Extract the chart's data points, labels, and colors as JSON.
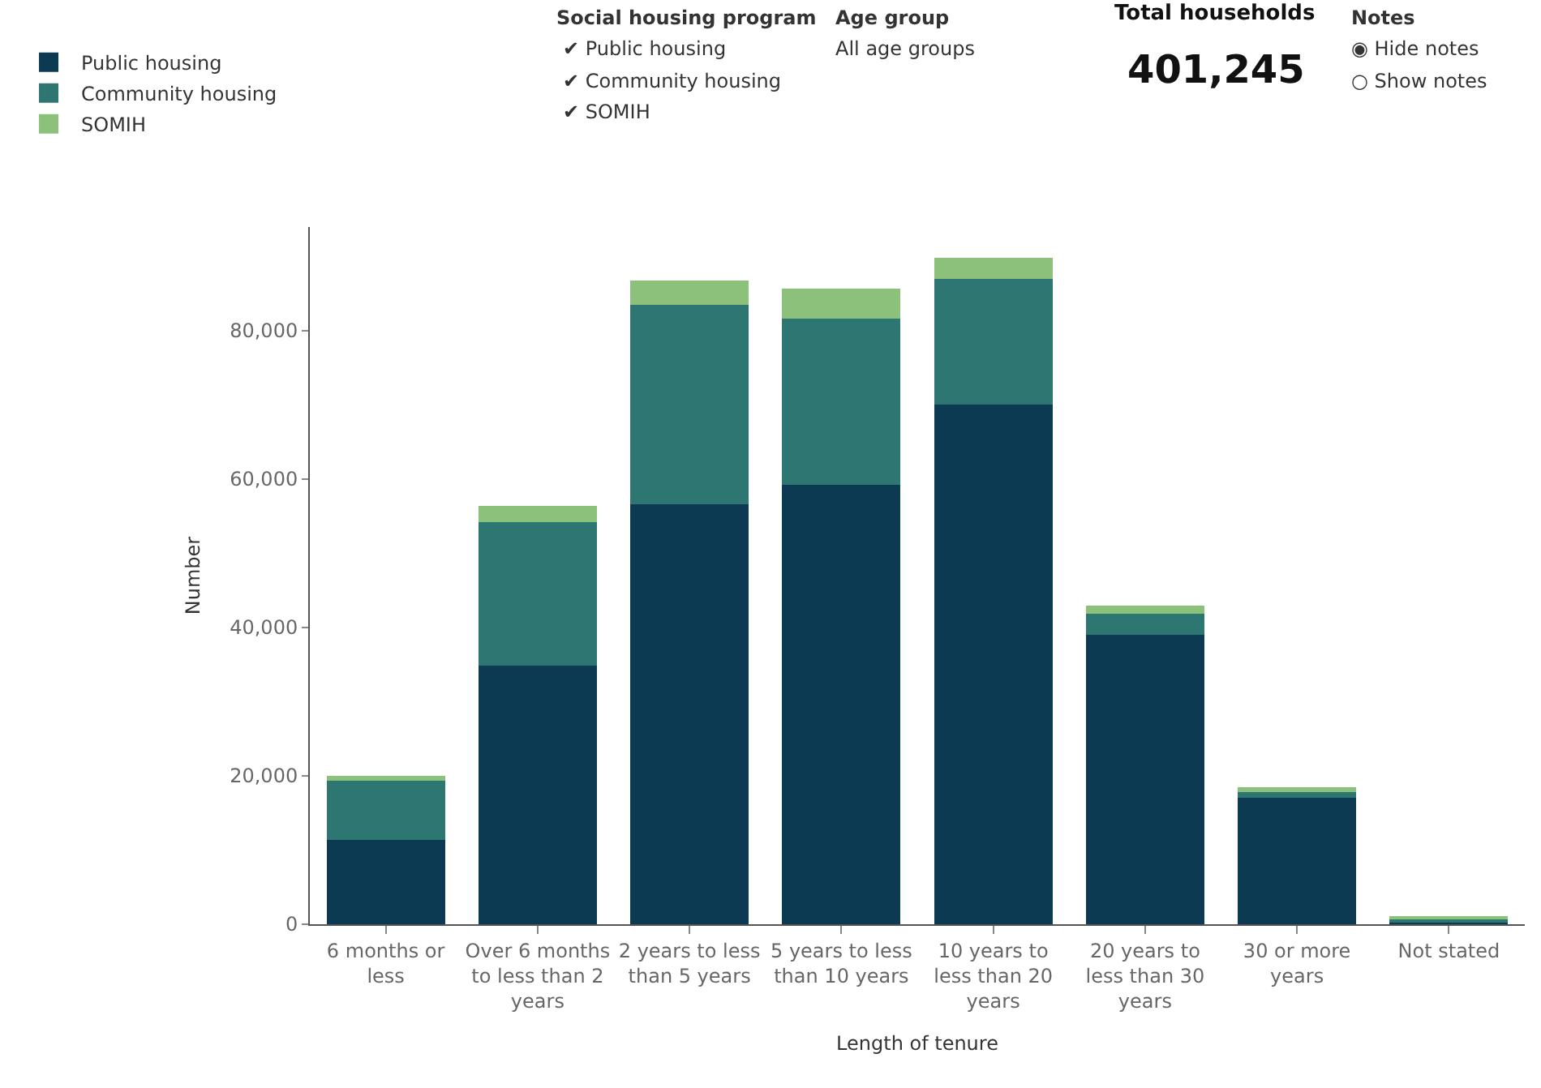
{
  "chart_data": {
    "type": "bar",
    "stacked": true,
    "xlabel": "Length of tenure",
    "ylabel": "Number",
    "categories": [
      "6 months or less",
      "Over 6 months to less than 2 years",
      "2 years to less than 5 years",
      "5 years to less than 10 years",
      "10 years to less than 20 years",
      "20 years to less than 30 years",
      "30 or more years",
      "Not stated"
    ],
    "series": [
      {
        "name": "Public housing",
        "color": "#0b3a52",
        "values": [
          11400,
          34900,
          56600,
          59200,
          70100,
          39000,
          17100,
          200
        ]
      },
      {
        "name": "Community housing",
        "color": "#2e7672",
        "values": [
          7900,
          19300,
          26900,
          22400,
          16900,
          2900,
          700,
          600
        ]
      },
      {
        "name": "SOMIH",
        "color": "#8cc17c",
        "values": [
          700,
          2200,
          3300,
          4100,
          2900,
          1100,
          700,
          100
        ]
      }
    ],
    "ylim": [
      0,
      94000
    ],
    "yticks": [
      0,
      {
        "value": 20000,
        "label": "20,000"
      },
      {
        "value": 40000,
        "label": "40,000"
      },
      {
        "value": 60000,
        "label": "60,000"
      },
      {
        "value": 80000,
        "label": "80,000"
      }
    ],
    "legend": "top left",
    "annotations": [
      "Social housing program",
      "✔ Public housing",
      "✔ Community housing",
      "✔ SOMIH",
      "Age group",
      "All age groups",
      "Total households",
      "401,245",
      "Notes",
      "◉ Hide notes",
      "○ Show notes"
    ]
  }
}
